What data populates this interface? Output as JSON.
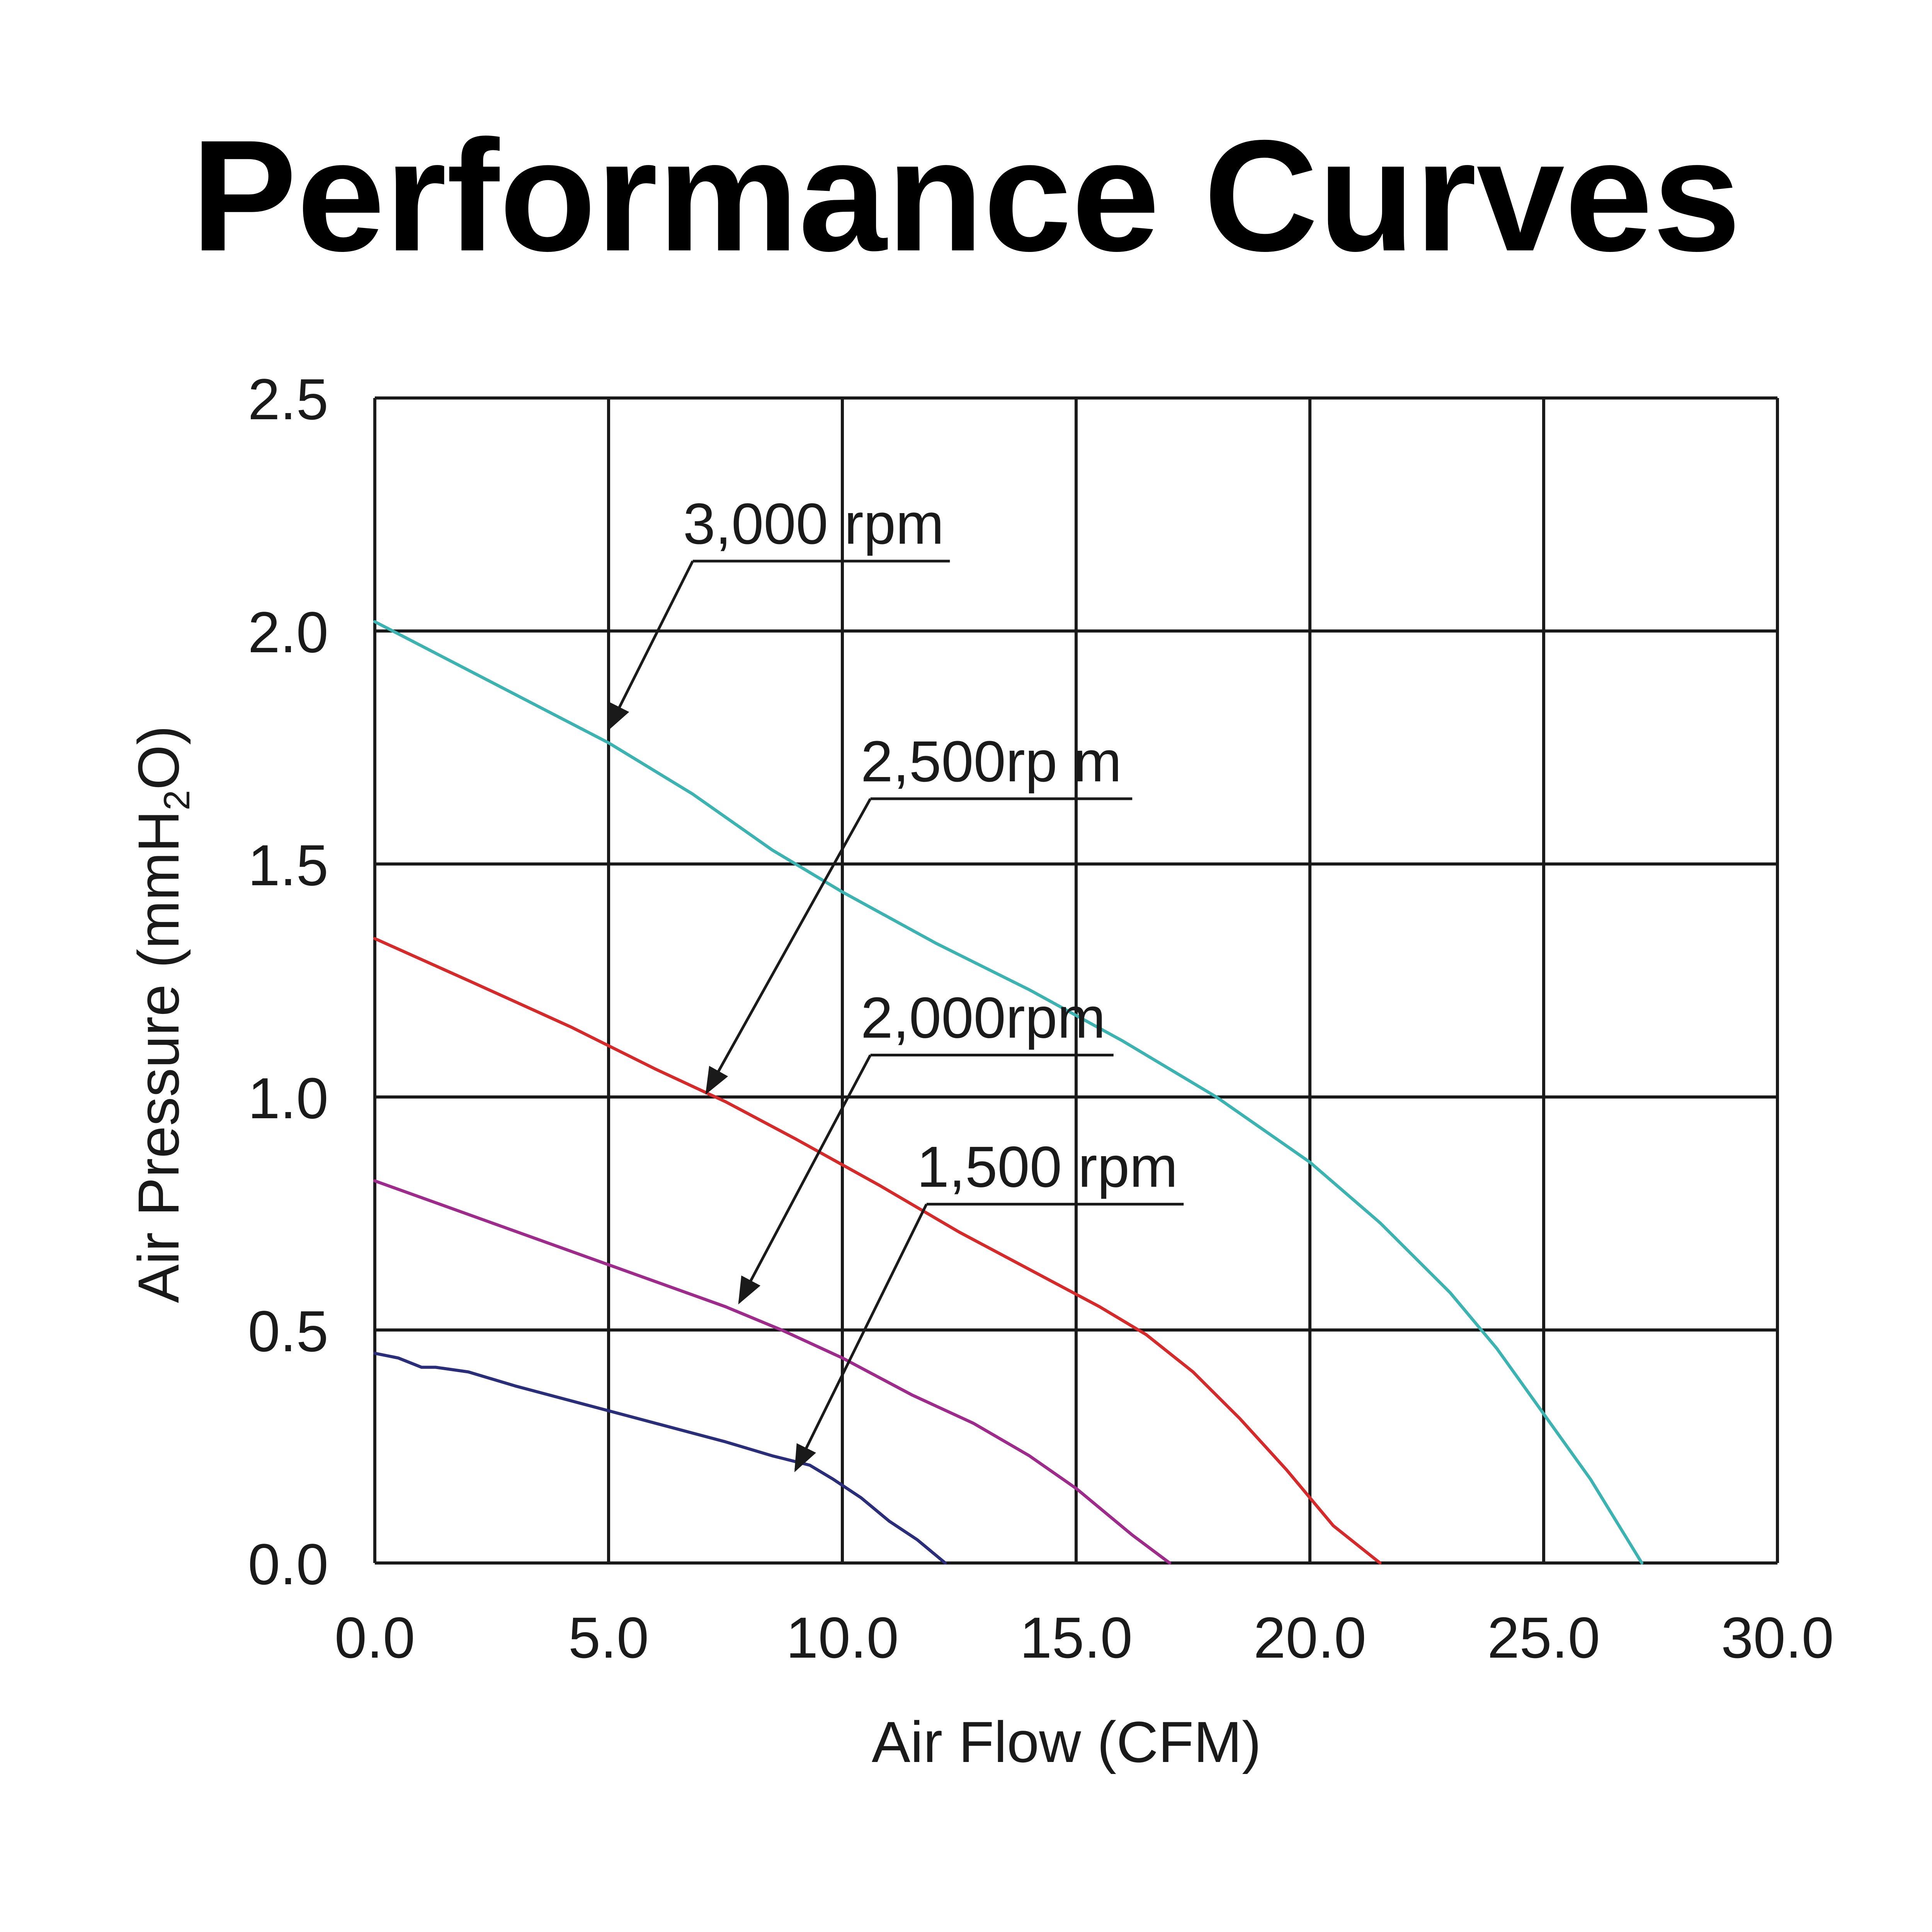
{
  "chart_data": {
    "type": "line",
    "title": "Performance Curves",
    "xlabel": "Air Flow (CFM)",
    "ylabel_parts": {
      "before_sub": "Air Pressure (mmH",
      "sub": "2",
      "after_sub": "O)"
    },
    "xlim": [
      0,
      30
    ],
    "ylim": [
      0,
      2.5
    ],
    "x_ticks": [
      0,
      5,
      10,
      15,
      20,
      25,
      30
    ],
    "x_tick_labels": [
      "0.0",
      "5.0",
      "10.0",
      "15.0",
      "20.0",
      "25.0",
      "30.0"
    ],
    "y_ticks": [
      0,
      0.5,
      1.0,
      1.5,
      2.0,
      2.5
    ],
    "y_tick_labels": [
      "0.0",
      "0.5",
      "1.0",
      "1.5",
      "2.0",
      "2.5"
    ],
    "grid": true,
    "series": [
      {
        "name": "3,000 rpm",
        "color": "#3bb3b0",
        "x": [
          0,
          2.5,
          5.0,
          6.8,
          8.5,
          10.0,
          12.0,
          14.0,
          16.0,
          18.0,
          20.0,
          21.5,
          23.0,
          24.0,
          25.0,
          26.0,
          27.1
        ],
        "y": [
          2.02,
          1.89,
          1.76,
          1.65,
          1.53,
          1.44,
          1.33,
          1.23,
          1.12,
          1.0,
          0.86,
          0.73,
          0.58,
          0.46,
          0.32,
          0.18,
          0.0
        ]
      },
      {
        "name": "2,500rp m",
        "color": "#d62a2a",
        "x": [
          0,
          2.0,
          4.2,
          6.0,
          7.5,
          9.0,
          10.8,
          12.5,
          14.0,
          15.5,
          16.5,
          17.5,
          18.5,
          19.5,
          20.5,
          21.5
        ],
        "y": [
          1.34,
          1.25,
          1.15,
          1.06,
          0.99,
          0.91,
          0.81,
          0.71,
          0.63,
          0.55,
          0.49,
          0.41,
          0.31,
          0.2,
          0.08,
          0.0
        ]
      },
      {
        "name": "2,000rpm",
        "color": "#9e2b8b",
        "x": [
          0,
          2.5,
          5.0,
          7.5,
          8.7,
          10.0,
          11.5,
          12.8,
          14.0,
          15.0,
          16.2,
          17.0
        ],
        "y": [
          0.82,
          0.73,
          0.64,
          0.55,
          0.5,
          0.44,
          0.36,
          0.3,
          0.23,
          0.16,
          0.06,
          0.0
        ]
      },
      {
        "name": "1,500 rpm",
        "color": "#2a2e7a",
        "x": [
          0,
          0.5,
          1.0,
          1.3,
          2.0,
          3.0,
          4.5,
          6.0,
          7.5,
          8.5,
          9.3,
          9.8,
          10.4,
          11.0,
          11.6,
          12.2
        ],
        "y": [
          0.45,
          0.44,
          0.42,
          0.42,
          0.41,
          0.38,
          0.34,
          0.3,
          0.26,
          0.23,
          0.21,
          0.18,
          0.14,
          0.09,
          0.05,
          0.0
        ]
      }
    ],
    "annotations": [
      {
        "text": "3,000 rpm",
        "series": "3,000 rpm",
        "points_to": {
          "x": 5.0,
          "y": 1.79
        },
        "label_anchor": {
          "x": 6.8,
          "y": 2.15
        },
        "label_end_x": 12.3
      },
      {
        "text": "2,500rp m",
        "series": "2,500rp m",
        "points_to": {
          "x": 7.1,
          "y": 1.01
        },
        "label_anchor": {
          "x": 10.6,
          "y": 1.64
        },
        "label_end_x": 16.2
      },
      {
        "text": "2,000rpm",
        "series": "2,000rpm",
        "points_to": {
          "x": 7.8,
          "y": 0.56
        },
        "label_anchor": {
          "x": 10.6,
          "y": 1.09
        },
        "label_end_x": 15.8
      },
      {
        "text": "1,500 rpm",
        "series": "1,500 rpm",
        "points_to": {
          "x": 9.0,
          "y": 0.2
        },
        "label_anchor": {
          "x": 11.8,
          "y": 0.77
        },
        "label_end_x": 17.3
      }
    ]
  }
}
